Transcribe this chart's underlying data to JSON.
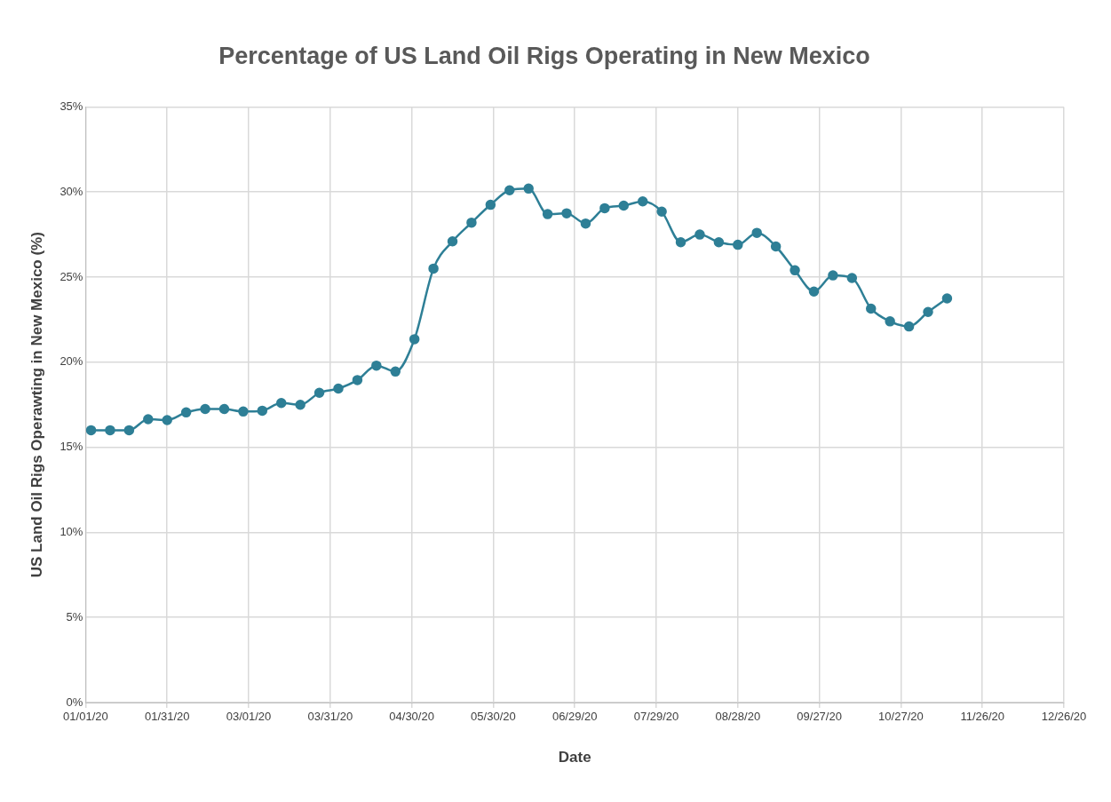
{
  "chart_data": {
    "type": "line",
    "title": "Percentage of US Land Oil Rigs Operating in New Mexico",
    "xlabel": "Date",
    "ylabel": "US Land Oil Rigs Operawting in New Mexico (%)",
    "x": [
      "2020-01-03",
      "2020-01-10",
      "2020-01-17",
      "2020-01-24",
      "2020-01-31",
      "2020-02-07",
      "2020-02-14",
      "2020-02-21",
      "2020-02-28",
      "2020-03-06",
      "2020-03-13",
      "2020-03-20",
      "2020-03-27",
      "2020-04-03",
      "2020-04-10",
      "2020-04-17",
      "2020-04-24",
      "2020-05-01",
      "2020-05-08",
      "2020-05-15",
      "2020-05-22",
      "2020-05-29",
      "2020-06-05",
      "2020-06-12",
      "2020-06-19",
      "2020-06-26",
      "2020-07-03",
      "2020-07-10",
      "2020-07-17",
      "2020-07-24",
      "2020-07-31",
      "2020-08-07",
      "2020-08-14",
      "2020-08-21",
      "2020-08-28",
      "2020-09-04",
      "2020-09-11",
      "2020-09-18",
      "2020-09-25",
      "2020-10-02",
      "2020-10-09",
      "2020-10-16",
      "2020-10-23",
      "2020-10-30",
      "2020-11-06",
      "2020-11-13"
    ],
    "series": [
      {
        "color": "#2e7f96",
        "values": [
          16.0,
          16.0,
          16.0,
          16.65,
          16.6,
          17.05,
          17.25,
          17.25,
          17.1,
          17.15,
          17.6,
          17.5,
          18.2,
          18.45,
          18.95,
          19.8,
          19.45,
          21.35,
          25.5,
          27.1,
          28.2,
          29.25,
          30.1,
          30.2,
          28.7,
          28.75,
          28.15,
          29.05,
          29.2,
          29.45,
          28.85,
          27.05,
          27.5,
          27.05,
          26.9,
          27.6,
          26.8,
          25.4,
          24.15,
          25.1,
          24.95,
          23.15,
          22.4,
          22.1,
          22.95,
          23.75
        ]
      }
    ],
    "xlim": [
      "2020-01-01",
      "2020-12-26"
    ],
    "xticks": [
      {
        "value": "2020-01-01",
        "label": "01/01/20"
      },
      {
        "value": "2020-01-31",
        "label": "01/31/20"
      },
      {
        "value": "2020-03-01",
        "label": "03/01/20"
      },
      {
        "value": "2020-03-31",
        "label": "03/31/20"
      },
      {
        "value": "2020-04-30",
        "label": "04/30/20"
      },
      {
        "value": "2020-05-30",
        "label": "05/30/20"
      },
      {
        "value": "2020-06-29",
        "label": "06/29/20"
      },
      {
        "value": "2020-07-29",
        "label": "07/29/20"
      },
      {
        "value": "2020-08-28",
        "label": "08/28/20"
      },
      {
        "value": "2020-09-27",
        "label": "09/27/20"
      },
      {
        "value": "2020-10-27",
        "label": "10/27/20"
      },
      {
        "value": "2020-11-26",
        "label": "11/26/20"
      },
      {
        "value": "2020-12-26",
        "label": "12/26/20"
      }
    ],
    "ylim": [
      0,
      35
    ],
    "yticks": [
      {
        "value": 0,
        "label": "0%"
      },
      {
        "value": 5,
        "label": "5%"
      },
      {
        "value": 10,
        "label": "10%"
      },
      {
        "value": 15,
        "label": "15%"
      },
      {
        "value": 20,
        "label": "20%"
      },
      {
        "value": 25,
        "label": "25%"
      },
      {
        "value": 30,
        "label": "30%"
      },
      {
        "value": 35,
        "label": "35%"
      }
    ],
    "grid": true,
    "marker": "circle",
    "line_style": "solid",
    "legend": false
  }
}
